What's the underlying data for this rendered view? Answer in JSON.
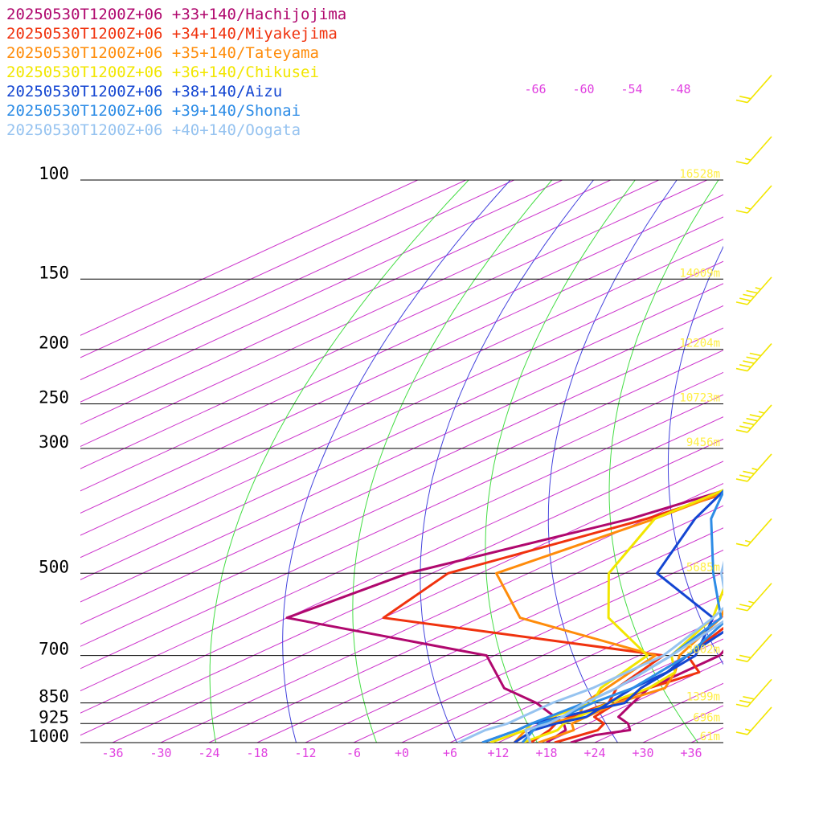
{
  "chart_data": {
    "type": "skew-t",
    "legend": [
      {
        "label": "20250530T1200Z+06 +33+140/Hachijojima",
        "color": "#b0086e"
      },
      {
        "label": "20250530T1200Z+06 +34+140/Miyakejima",
        "color": "#f0320e"
      },
      {
        "label": "20250530T1200Z+06 +35+140/Tateyama",
        "color": "#ff8c0a"
      },
      {
        "label": "20250530T1200Z+06 +36+140/Chikusei",
        "color": "#f2e600"
      },
      {
        "label": "20250530T1200Z+06 +38+140/Aizu",
        "color": "#1446d2"
      },
      {
        "label": "20250530T1200Z+06 +39+140/Shonai",
        "color": "#2d8ce6"
      },
      {
        "label": "20250530T1200Z+06 +40+140/Oogata",
        "color": "#96c3f0"
      }
    ],
    "pressure_levels": [
      {
        "p": 100,
        "label": "100",
        "height": "16528m"
      },
      {
        "p": 150,
        "label": "150",
        "height": "14009m"
      },
      {
        "p": 200,
        "label": "200",
        "height": "12204m"
      },
      {
        "p": 250,
        "label": "250",
        "height": "10723m"
      },
      {
        "p": 300,
        "label": "300",
        "height": "9456m"
      },
      {
        "p": 500,
        "label": "500",
        "height": "5685m"
      },
      {
        "p": 700,
        "label": "700",
        "height": "3002m"
      },
      {
        "p": 850,
        "label": "850",
        "height": "1399m"
      },
      {
        "p": 925,
        "label": "925",
        "height": "696m"
      },
      {
        "p": 1000,
        "label": "1000",
        "height": "61m"
      }
    ],
    "temperature_ticks": [
      "-36",
      "-30",
      "-24",
      "-18",
      "-12",
      "-6",
      "+0",
      "+6",
      "+12",
      "+18",
      "+24",
      "+30",
      "+36"
    ],
    "upper_temperature_labels": [
      "-66",
      "-60",
      "-54",
      "-48"
    ],
    "theta_labels": [
      {
        "value": "310",
        "color": "#33cc33"
      },
      {
        "value": "320",
        "color": "#3333cc"
      },
      {
        "value": "330",
        "color": "#33cc33"
      },
      {
        "value": "340",
        "color": "#3333cc"
      },
      {
        "value": "350",
        "color": "#33cc33"
      },
      {
        "value": "360",
        "color": "#3333cc"
      },
      {
        "value": "370",
        "color": "#33cc33"
      },
      {
        "value": "380",
        "color": "#3333cc"
      },
      {
        "value": "390",
        "color": "#33cc33"
      },
      {
        "value": "400",
        "color": "#3333cc"
      },
      {
        "value": "410",
        "color": "#33cc33"
      }
    ],
    "skew_deg_per_unit_logp": 66,
    "p_top": 100,
    "p_bottom": 1000,
    "temperature_range": [
      -40,
      40
    ],
    "series": [
      {
        "name": "20250530T1200Z+06 +33+140/Hachijojima",
        "color": "#b0086e",
        "temperature": [
          [
            1000,
            21
          ],
          [
            970,
            22
          ],
          [
            950,
            25
          ],
          [
            925,
            23
          ],
          [
            900,
            20
          ],
          [
            850,
            18
          ],
          [
            800,
            16
          ],
          [
            700,
            16
          ],
          [
            600,
            10
          ],
          [
            500,
            -2
          ],
          [
            400,
            -12
          ],
          [
            300,
            -22
          ],
          [
            250,
            -33
          ],
          [
            200,
            -47
          ],
          [
            170,
            -59
          ],
          [
            150,
            -62
          ],
          [
            130,
            -61
          ],
          [
            115,
            -60
          ],
          [
            105,
            -63
          ],
          [
            100,
            -65
          ],
          [
            90,
            -67
          ],
          [
            80,
            -64
          ],
          [
            60,
            -55
          ],
          [
            40,
            -45
          ]
        ],
        "dewpoint": [
          [
            1000,
            18
          ],
          [
            950,
            17
          ],
          [
            925,
            15
          ],
          [
            850,
            6
          ],
          [
            800,
            -2
          ],
          [
            700,
            -13
          ],
          [
            600,
            -48
          ],
          [
            500,
            -45
          ],
          [
            400,
            -32
          ],
          [
            300,
            -22
          ]
        ]
      },
      {
        "name": "20250530T1200Z+06 +34+140/Miyakejima",
        "color": "#f0320e",
        "temperature": [
          [
            1000,
            19
          ],
          [
            950,
            21
          ],
          [
            925,
            20
          ],
          [
            900,
            17
          ],
          [
            850,
            16
          ],
          [
            800,
            16
          ],
          [
            750,
            18
          ],
          [
            700,
            12
          ],
          [
            600,
            8
          ],
          [
            500,
            -3
          ],
          [
            400,
            -13
          ],
          [
            300,
            -22
          ],
          [
            250,
            -33
          ],
          [
            200,
            -48
          ],
          [
            170,
            -60
          ],
          [
            150,
            -60
          ],
          [
            130,
            -58
          ],
          [
            115,
            -58
          ],
          [
            100,
            -62
          ],
          [
            90,
            -64
          ],
          [
            80,
            -62
          ],
          [
            60,
            -54
          ],
          [
            40,
            -44
          ]
        ],
        "dewpoint": [
          [
            1000,
            16
          ],
          [
            950,
            15
          ],
          [
            925,
            14
          ],
          [
            900,
            14
          ],
          [
            850,
            15
          ],
          [
            800,
            12
          ],
          [
            700,
            9
          ],
          [
            600,
            -36
          ],
          [
            500,
            -40
          ],
          [
            400,
            -30
          ],
          [
            300,
            -22
          ]
        ]
      },
      {
        "name": "20250530T1200Z+06 +35+140/Tateyama",
        "color": "#ff8c0a",
        "temperature": [
          [
            1000,
            17
          ],
          [
            950,
            18
          ],
          [
            925,
            16
          ],
          [
            850,
            16
          ],
          [
            800,
            18
          ],
          [
            750,
            15
          ],
          [
            700,
            11
          ],
          [
            600,
            6
          ],
          [
            500,
            -4
          ],
          [
            400,
            -15
          ],
          [
            300,
            -24
          ],
          [
            250,
            -33
          ],
          [
            200,
            -50
          ],
          [
            170,
            -61
          ],
          [
            150,
            -59
          ],
          [
            130,
            -56
          ],
          [
            115,
            -55
          ],
          [
            100,
            -60
          ],
          [
            90,
            -62
          ],
          [
            80,
            -60
          ],
          [
            60,
            -53
          ],
          [
            40,
            -43
          ]
        ],
        "dewpoint": [
          [
            1000,
            14
          ],
          [
            950,
            12
          ],
          [
            925,
            13
          ],
          [
            900,
            15
          ],
          [
            850,
            12
          ],
          [
            700,
            8
          ],
          [
            600,
            -19
          ],
          [
            500,
            -34
          ],
          [
            400,
            -29
          ],
          [
            300,
            -25
          ]
        ]
      },
      {
        "name": "20250530T1200Z+06 +36+140/Chikusei",
        "color": "#f2e600",
        "temperature": [
          [
            1000,
            15
          ],
          [
            950,
            16
          ],
          [
            925,
            15
          ],
          [
            850,
            15
          ],
          [
            800,
            16
          ],
          [
            750,
            15
          ],
          [
            700,
            10
          ],
          [
            600,
            5
          ],
          [
            500,
            -5
          ],
          [
            400,
            -16
          ],
          [
            300,
            -25
          ],
          [
            250,
            -33
          ],
          [
            200,
            -49
          ],
          [
            170,
            -59
          ],
          [
            150,
            -57
          ],
          [
            130,
            -55
          ],
          [
            115,
            -55
          ],
          [
            100,
            -59
          ],
          [
            90,
            -61
          ],
          [
            80,
            -59
          ],
          [
            60,
            -52
          ],
          [
            40,
            -42
          ]
        ],
        "dewpoint": [
          [
            1000,
            11
          ],
          [
            950,
            12
          ],
          [
            925,
            11
          ],
          [
            850,
            13
          ],
          [
            800,
            10
          ],
          [
            700,
            7
          ],
          [
            600,
            -8
          ],
          [
            500,
            -20
          ],
          [
            400,
            -29
          ],
          [
            300,
            -27
          ]
        ]
      },
      {
        "name": "20250530T1200Z+06 +38+140/Aizu",
        "color": "#1446d2",
        "temperature": [
          [
            1000,
            14
          ],
          [
            950,
            13
          ],
          [
            925,
            14
          ],
          [
            900,
            16
          ],
          [
            850,
            15
          ],
          [
            800,
            14
          ],
          [
            750,
            14
          ],
          [
            700,
            12
          ],
          [
            600,
            9
          ],
          [
            500,
            -4
          ],
          [
            400,
            -18
          ],
          [
            300,
            -29
          ],
          [
            250,
            -35
          ],
          [
            200,
            -47
          ],
          [
            170,
            -57
          ],
          [
            150,
            -55
          ],
          [
            130,
            -55
          ],
          [
            115,
            -55
          ],
          [
            100,
            -58
          ],
          [
            90,
            -60
          ],
          [
            80,
            -58
          ],
          [
            60,
            -51
          ],
          [
            40,
            -41
          ]
        ],
        "dewpoint": [
          [
            1000,
            10
          ],
          [
            950,
            11
          ],
          [
            925,
            11
          ],
          [
            850,
            17
          ],
          [
            800,
            15
          ],
          [
            700,
            13
          ],
          [
            600,
            5
          ],
          [
            500,
            -14
          ],
          [
            400,
            -24
          ],
          [
            300,
            -34
          ]
        ]
      },
      {
        "name": "20250530T1200Z+06 +39+140/Shonai",
        "color": "#2d8ce6",
        "temperature": [
          [
            1000,
            15
          ],
          [
            950,
            13
          ],
          [
            925,
            12
          ],
          [
            900,
            13
          ],
          [
            850,
            13
          ],
          [
            800,
            14
          ],
          [
            700,
            12
          ],
          [
            600,
            7
          ],
          [
            500,
            -5
          ],
          [
            400,
            -18
          ],
          [
            300,
            -31
          ],
          [
            250,
            -38
          ],
          [
            200,
            -48
          ],
          [
            170,
            -56
          ],
          [
            150,
            -54
          ],
          [
            130,
            -54
          ],
          [
            115,
            -55
          ],
          [
            100,
            -58
          ],
          [
            90,
            -60
          ],
          [
            80,
            -58
          ],
          [
            60,
            -51
          ],
          [
            40,
            -41
          ]
        ],
        "dewpoint": [
          [
            1000,
            10
          ],
          [
            950,
            11
          ],
          [
            925,
            11
          ],
          [
            850,
            12
          ],
          [
            800,
            12
          ],
          [
            700,
            10
          ],
          [
            600,
            6
          ],
          [
            500,
            -7
          ],
          [
            400,
            -22
          ],
          [
            300,
            -37
          ]
        ]
      },
      {
        "name": "20250530T1200Z+06 +40+140/Oogata",
        "color": "#96c3f0",
        "temperature": [
          [
            1000,
            16
          ],
          [
            950,
            12
          ],
          [
            925,
            13
          ],
          [
            900,
            13
          ],
          [
            850,
            12
          ],
          [
            800,
            12
          ],
          [
            700,
            10
          ],
          [
            600,
            7
          ],
          [
            500,
            -6
          ],
          [
            400,
            -19
          ],
          [
            300,
            -31
          ],
          [
            250,
            -39
          ],
          [
            200,
            -44
          ],
          [
            170,
            -52
          ],
          [
            150,
            -51
          ],
          [
            130,
            -52
          ],
          [
            115,
            -54
          ],
          [
            100,
            -57
          ],
          [
            90,
            -59
          ],
          [
            80,
            -57
          ],
          [
            60,
            -50
          ],
          [
            40,
            -40
          ]
        ],
        "dewpoint": [
          [
            1000,
            7
          ],
          [
            950,
            7
          ],
          [
            925,
            8
          ],
          [
            850,
            8
          ],
          [
            800,
            9
          ],
          [
            700,
            9
          ],
          [
            600,
            5
          ],
          [
            500,
            -1
          ],
          [
            400,
            -14
          ],
          [
            300,
            -30
          ]
        ]
      }
    ],
    "wind_barbs": [
      {
        "p": 70,
        "speed_kt": 20
      },
      {
        "p": 90,
        "speed_kt": 15
      },
      {
        "p": 110,
        "speed_kt": 15
      },
      {
        "p": 160,
        "speed_kt": 45
      },
      {
        "p": 210,
        "speed_kt": 50
      },
      {
        "p": 270,
        "speed_kt": 55
      },
      {
        "p": 330,
        "speed_kt": 35
      },
      {
        "p": 430,
        "speed_kt": 15
      },
      {
        "p": 560,
        "speed_kt": 25
      },
      {
        "p": 690,
        "speed_kt": 20
      },
      {
        "p": 830,
        "speed_kt": 30
      },
      {
        "p": 930,
        "speed_kt": 15
      }
    ],
    "grid": true
  }
}
